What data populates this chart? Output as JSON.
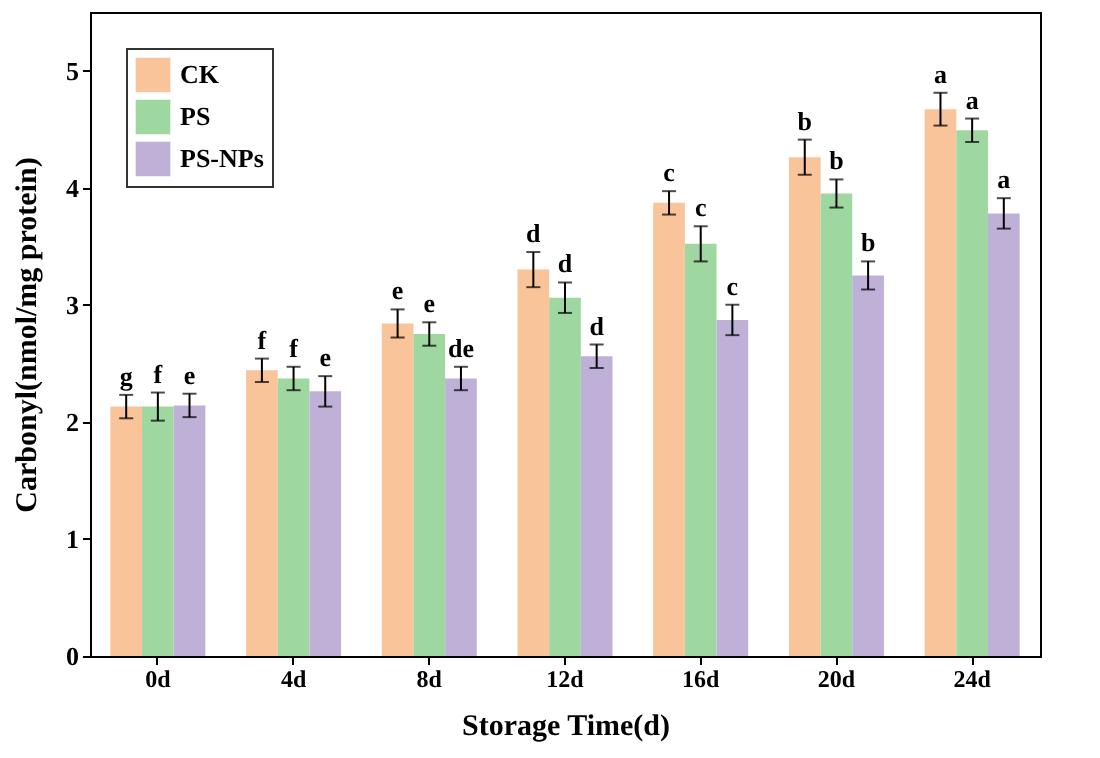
{
  "chart_data": {
    "type": "bar",
    "xlabel": "Storage Time(d)",
    "ylabel": "Carbonyl(nmol/mg protein)",
    "categories": [
      "0d",
      "4d",
      "8d",
      "12d",
      "16d",
      "20d",
      "24d"
    ],
    "series": [
      {
        "name": "CK",
        "color": "#f9c49a",
        "values": [
          2.13,
          2.44,
          2.84,
          3.3,
          3.87,
          4.26,
          4.67
        ],
        "errors": [
          0.1,
          0.1,
          0.12,
          0.15,
          0.1,
          0.15,
          0.14
        ],
        "value_labels": [
          "g",
          "f",
          "e",
          "d",
          "c",
          "b",
          "a"
        ]
      },
      {
        "name": "PS",
        "color": "#9ed8a0",
        "values": [
          2.13,
          2.37,
          2.75,
          3.06,
          3.52,
          3.95,
          4.49
        ],
        "errors": [
          0.12,
          0.1,
          0.1,
          0.13,
          0.15,
          0.12,
          0.1
        ],
        "value_labels": [
          "f",
          "f",
          "e",
          "d",
          "c",
          "b",
          "a"
        ]
      },
      {
        "name": "PS-NPs",
        "color": "#bfb0d8",
        "values": [
          2.14,
          2.26,
          2.37,
          2.56,
          2.87,
          3.25,
          3.78
        ],
        "errors": [
          0.1,
          0.13,
          0.1,
          0.1,
          0.13,
          0.12,
          0.13
        ],
        "value_labels": [
          "e",
          "e",
          "de",
          "d",
          "c",
          "b",
          "a"
        ]
      }
    ],
    "ylim": [
      0,
      5.5
    ],
    "yticks": [
      0,
      1,
      2,
      3,
      4,
      5
    ],
    "grid": false,
    "legend": "top left"
  }
}
